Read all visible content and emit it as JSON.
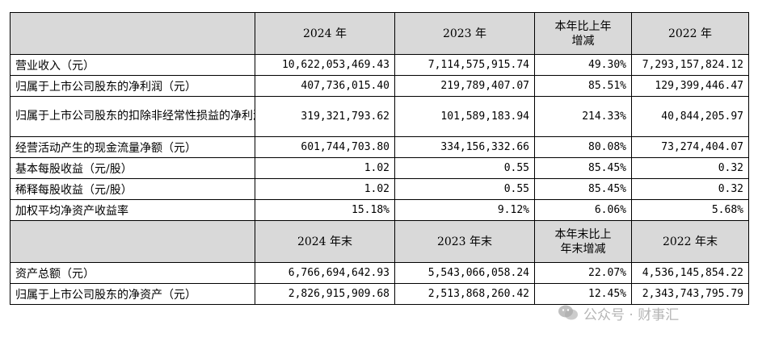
{
  "header1": {
    "col1": "2024 年",
    "col2": "2023 年",
    "col3": "本年比上年\n增减",
    "col4": "2022 年"
  },
  "rows1": [
    {
      "label": "营业收入（元）",
      "v2024": "10,622,053,469.43",
      "v2023": "7,114,575,915.74",
      "change": "49.30%",
      "v2022": "7,293,157,824.12"
    },
    {
      "label": "归属于上市公司股东的净利润（元）",
      "v2024": "407,736,015.40",
      "v2023": "219,789,407.07",
      "change": "85.51%",
      "v2022": "129,399,446.47"
    },
    {
      "label": "归属于上市公司股东的扣除非经常性损益的净利润（元）",
      "v2024": "319,321,793.62",
      "v2023": "101,589,183.94",
      "change": "214.33%",
      "v2022": "40,844,205.97"
    },
    {
      "label": "经营活动产生的现金流量净额（元）",
      "v2024": "601,744,703.80",
      "v2023": "334,156,332.66",
      "change": "80.08%",
      "v2022": "73,274,404.07"
    },
    {
      "label": "基本每股收益（元/股）",
      "v2024": "1.02",
      "v2023": "0.55",
      "change": "85.45%",
      "v2022": "0.32"
    },
    {
      "label": "稀释每股收益（元/股）",
      "v2024": "1.02",
      "v2023": "0.55",
      "change": "85.45%",
      "v2022": "0.32"
    },
    {
      "label": "加权平均净资产收益率",
      "v2024": "15.18%",
      "v2023": "9.12%",
      "change": "6.06%",
      "v2022": "5.68%"
    }
  ],
  "header2": {
    "col1": "2024 年末",
    "col2": "2023 年末",
    "col3": "本年末比上\n年末增减",
    "col4": "2022 年末"
  },
  "rows2": [
    {
      "label": "资产总额（元）",
      "v2024": "6,766,694,642.93",
      "v2023": "5,543,066,058.24",
      "change": "22.07%",
      "v2022": "4,536,145,854.22"
    },
    {
      "label": "归属于上市公司股东的净资产（元）",
      "v2024": "2,826,915,909.68",
      "v2023": "2,513,868,260.42",
      "change": "12.45%",
      "v2022": "2,343,743,795.79"
    }
  ],
  "watermark": {
    "text": "公众号 · 财事汇",
    "icon": "wechat-icon",
    "color": "#8c8c8c"
  },
  "colors": {
    "header_bg": "#d9d9d9",
    "border": "#000000"
  }
}
